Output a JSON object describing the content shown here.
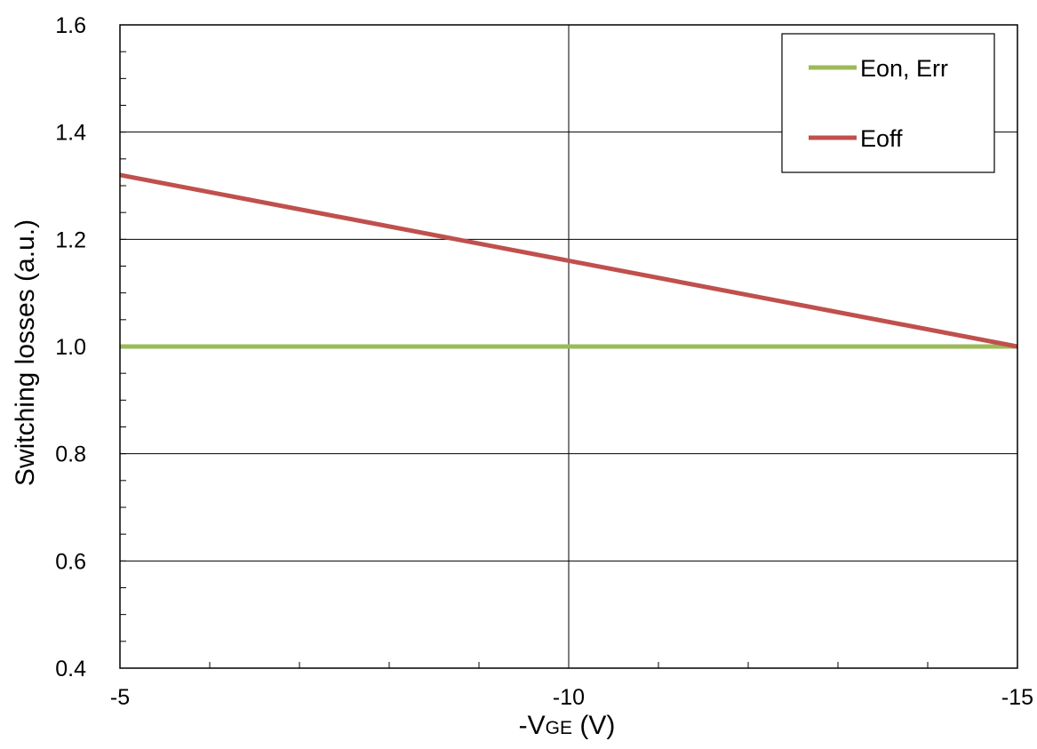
{
  "chart_data": {
    "type": "line",
    "title": "",
    "xlabel": {
      "prefix": "-V",
      "subscript": "GE",
      "suffix": " (V)"
    },
    "ylabel": "Switching losses (a.u.)",
    "xlim": [
      -5,
      -15
    ],
    "ylim": [
      0.4,
      1.6
    ],
    "x_ticks": [
      -5,
      -10,
      -15
    ],
    "x_tick_labels": [
      "-5",
      "-10",
      "-15"
    ],
    "x_minor_step": 1,
    "y_ticks": [
      0.4,
      0.6,
      0.8,
      1.0,
      1.2,
      1.4,
      1.6
    ],
    "y_tick_labels": [
      "0.4",
      "0.6",
      "0.8",
      "1.0",
      "1.2",
      "1.4",
      "1.6"
    ],
    "y_minor_step": 0.05,
    "grid": true,
    "legend_position": "top-right",
    "series": [
      {
        "name": "Eon, Err",
        "color": "#9BBB59",
        "x": [
          -5,
          -15
        ],
        "y": [
          1.0,
          1.0
        ]
      },
      {
        "name": "Eoff",
        "color": "#C0504D",
        "x": [
          -5,
          -15
        ],
        "y": [
          1.32,
          1.0
        ]
      }
    ]
  }
}
